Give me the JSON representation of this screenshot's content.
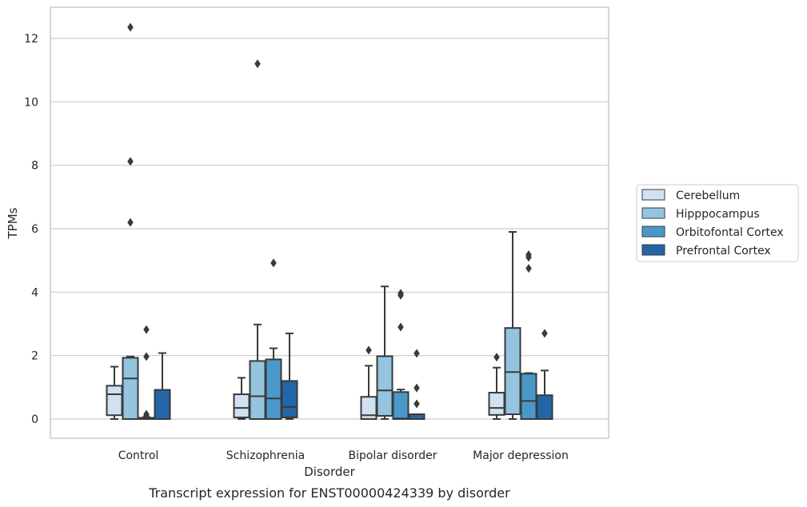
{
  "chart_data": {
    "type": "box",
    "caption": "Transcript expression for ENST00000424339 by disorder",
    "xlabel": "Disorder",
    "ylabel": "TPMs",
    "ylim": [
      -0.6,
      13.0
    ],
    "yticks": [
      0,
      2,
      4,
      6,
      8,
      10,
      12
    ],
    "grid": "horizontal",
    "legend_position": "right",
    "categories": [
      "Control",
      "Schizophrenia",
      "Bipolar disorder",
      "Major depression"
    ],
    "series": [
      {
        "name": "Cerebellum",
        "color": "#d0e1f2",
        "boxes": [
          {
            "whislo": 0.0,
            "q1": 0.12,
            "med": 0.78,
            "q3": 1.05,
            "whishi": 1.65,
            "fliers": []
          },
          {
            "whislo": 0.0,
            "q1": 0.05,
            "med": 0.35,
            "q3": 0.78,
            "whishi": 1.3,
            "fliers": []
          },
          {
            "whislo": 0.0,
            "q1": 0.0,
            "med": 0.12,
            "q3": 0.7,
            "whishi": 1.68,
            "fliers": [
              2.17
            ]
          },
          {
            "whislo": 0.0,
            "q1": 0.13,
            "med": 0.35,
            "q3": 0.83,
            "whishi": 1.62,
            "fliers": [
              1.95
            ]
          }
        ]
      },
      {
        "name": "Hipppocampus",
        "color": "#94c4df",
        "boxes": [
          {
            "whislo": 0.0,
            "q1": 0.0,
            "med": 1.28,
            "q3": 1.93,
            "whishi": 1.97,
            "fliers": [
              6.2,
              8.12,
              12.35
            ]
          },
          {
            "whislo": 0.0,
            "q1": 0.0,
            "med": 0.72,
            "q3": 1.83,
            "whishi": 2.98,
            "fliers": [
              11.2
            ]
          },
          {
            "whislo": 0.0,
            "q1": 0.1,
            "med": 0.9,
            "q3": 1.98,
            "whishi": 4.18,
            "fliers": []
          },
          {
            "whislo": 0.0,
            "q1": 0.15,
            "med": 1.48,
            "q3": 2.87,
            "whishi": 5.9,
            "fliers": []
          }
        ]
      },
      {
        "name": "Orbitofontal Cortex",
        "color": "#4a98c9",
        "boxes": [
          {
            "whislo": 0.0,
            "q1": 0.0,
            "med": 0.02,
            "q3": 0.04,
            "whishi": 0.06,
            "fliers": [
              0.1,
              0.15,
              1.97,
              2.82
            ]
          },
          {
            "whislo": 0.0,
            "q1": 0.0,
            "med": 0.65,
            "q3": 1.88,
            "whishi": 2.23,
            "fliers": [
              4.92
            ]
          },
          {
            "whislo": 0.0,
            "q1": 0.0,
            "med": 0.02,
            "q3": 0.85,
            "whishi": 0.93,
            "fliers": [
              2.9,
              3.9,
              3.96
            ]
          },
          {
            "whislo": 0.0,
            "q1": 0.0,
            "med": 0.57,
            "q3": 1.43,
            "whishi": 1.45,
            "fliers": [
              4.75,
              5.1,
              5.18
            ]
          }
        ]
      },
      {
        "name": "Prefrontal Cortex",
        "color": "#2366a8",
        "boxes": [
          {
            "whislo": 0.0,
            "q1": 0.0,
            "med": 0.0,
            "q3": 0.92,
            "whishi": 2.08,
            "fliers": []
          },
          {
            "whislo": 0.0,
            "q1": 0.05,
            "med": 0.38,
            "q3": 1.2,
            "whishi": 2.7,
            "fliers": []
          },
          {
            "whislo": 0.0,
            "q1": 0.0,
            "med": 0.0,
            "q3": 0.15,
            "whishi": 0.15,
            "fliers": [
              0.48,
              0.98,
              2.07
            ]
          },
          {
            "whislo": 0.0,
            "q1": 0.0,
            "med": 0.0,
            "q3": 0.75,
            "whishi": 1.53,
            "fliers": [
              2.7
            ]
          }
        ]
      }
    ]
  }
}
